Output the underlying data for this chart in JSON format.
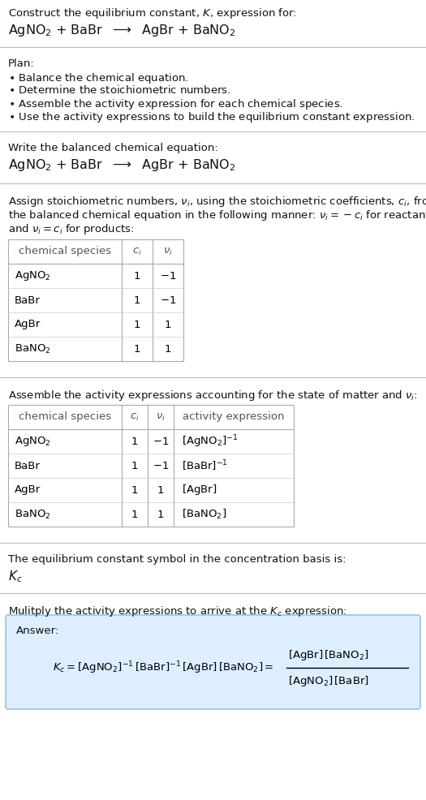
{
  "bg_color": "#ffffff",
  "table_border_color": "#aaaaaa",
  "answer_box_color": "#ddeeff",
  "answer_box_border": "#88bbdd",
  "table1_rows": [
    [
      "AgNO$_2$",
      "1",
      "$-1$"
    ],
    [
      "BaBr",
      "1",
      "$-1$"
    ],
    [
      "AgBr",
      "1",
      "$1$"
    ],
    [
      "BaNO$_2$",
      "1",
      "$1$"
    ]
  ],
  "table2_rows": [
    [
      "AgNO$_2$",
      "1",
      "$-1$",
      "$[\\mathrm{AgNO_2}]^{-1}$"
    ],
    [
      "BaBr",
      "1",
      "$-1$",
      "$[\\mathrm{BaBr}]^{-1}$"
    ],
    [
      "AgBr",
      "1",
      "$1$",
      "$[\\mathrm{AgBr}]$"
    ],
    [
      "BaNO$_2$",
      "1",
      "$1$",
      "$[\\mathrm{BaNO_2}]$"
    ]
  ]
}
